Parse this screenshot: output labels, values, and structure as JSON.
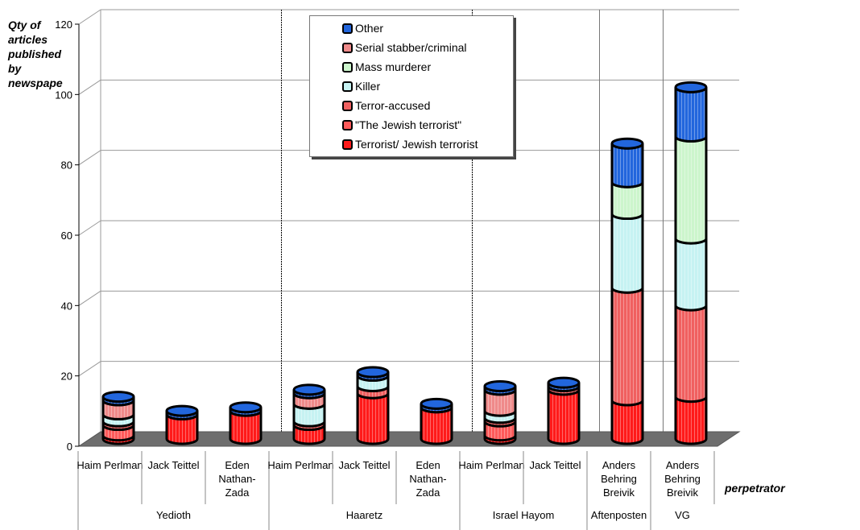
{
  "chart_data": {
    "type": "bar",
    "stacked": true,
    "title": "",
    "ylabel": "Qty of\narticles\npublished\n by\nnewspape",
    "xlabel": "perpetrator",
    "ylim": [
      0,
      120
    ],
    "yticks": [
      0,
      20,
      40,
      60,
      80,
      100,
      120
    ],
    "categories": [
      "Haim Perlman",
      "Jack Teittel",
      "Eden Nathan-Zada",
      "Haim Perlman",
      "Jack Teittel",
      "Eden Nathan-Zada",
      "Haim Perlman",
      "Jack Teittel",
      "Anders Behring Breivik",
      "Anders Behring Breivik"
    ],
    "groups": [
      {
        "name": "Yedioth",
        "count": 3
      },
      {
        "name": "Haaretz",
        "count": 3
      },
      {
        "name": "Israel Hayom",
        "count": 2
      },
      {
        "name": "Aftenposten",
        "count": 1
      },
      {
        "name": "VG",
        "count": 1
      }
    ],
    "series": [
      {
        "name": "Terrorist/ Jewish terrorist",
        "color": "#ff1a1a",
        "values": [
          1,
          7,
          8,
          4,
          13,
          9,
          1,
          14,
          11,
          12
        ]
      },
      {
        "name": "\"The Jewish terrorist\"",
        "color": "#ff5a5a",
        "values": [
          3,
          0,
          0,
          0,
          0,
          0,
          4,
          0,
          0,
          0
        ]
      },
      {
        "name": "Terror-accused",
        "color": "#f06060",
        "values": [
          1,
          0,
          0,
          1,
          2,
          0,
          1,
          1,
          32,
          26
        ]
      },
      {
        "name": "Killer",
        "color": "#c6f2f2",
        "values": [
          2,
          0,
          0,
          5,
          3,
          0,
          2,
          0,
          21,
          19
        ]
      },
      {
        "name": "Mass murderer",
        "color": "#ccf5cc",
        "values": [
          0,
          0,
          0,
          0,
          0,
          0,
          0,
          0,
          9,
          29
        ]
      },
      {
        "name": "Serial stabber/criminal",
        "color": "#ef8a8a",
        "values": [
          4,
          0,
          0,
          3,
          0,
          0,
          6,
          0,
          0,
          0
        ]
      },
      {
        "name": "Other",
        "color": "#2266dd",
        "values": [
          1,
          1,
          1,
          1,
          1,
          1,
          1,
          1,
          11,
          14
        ]
      }
    ],
    "grid": true,
    "legend_position": "top-center"
  }
}
